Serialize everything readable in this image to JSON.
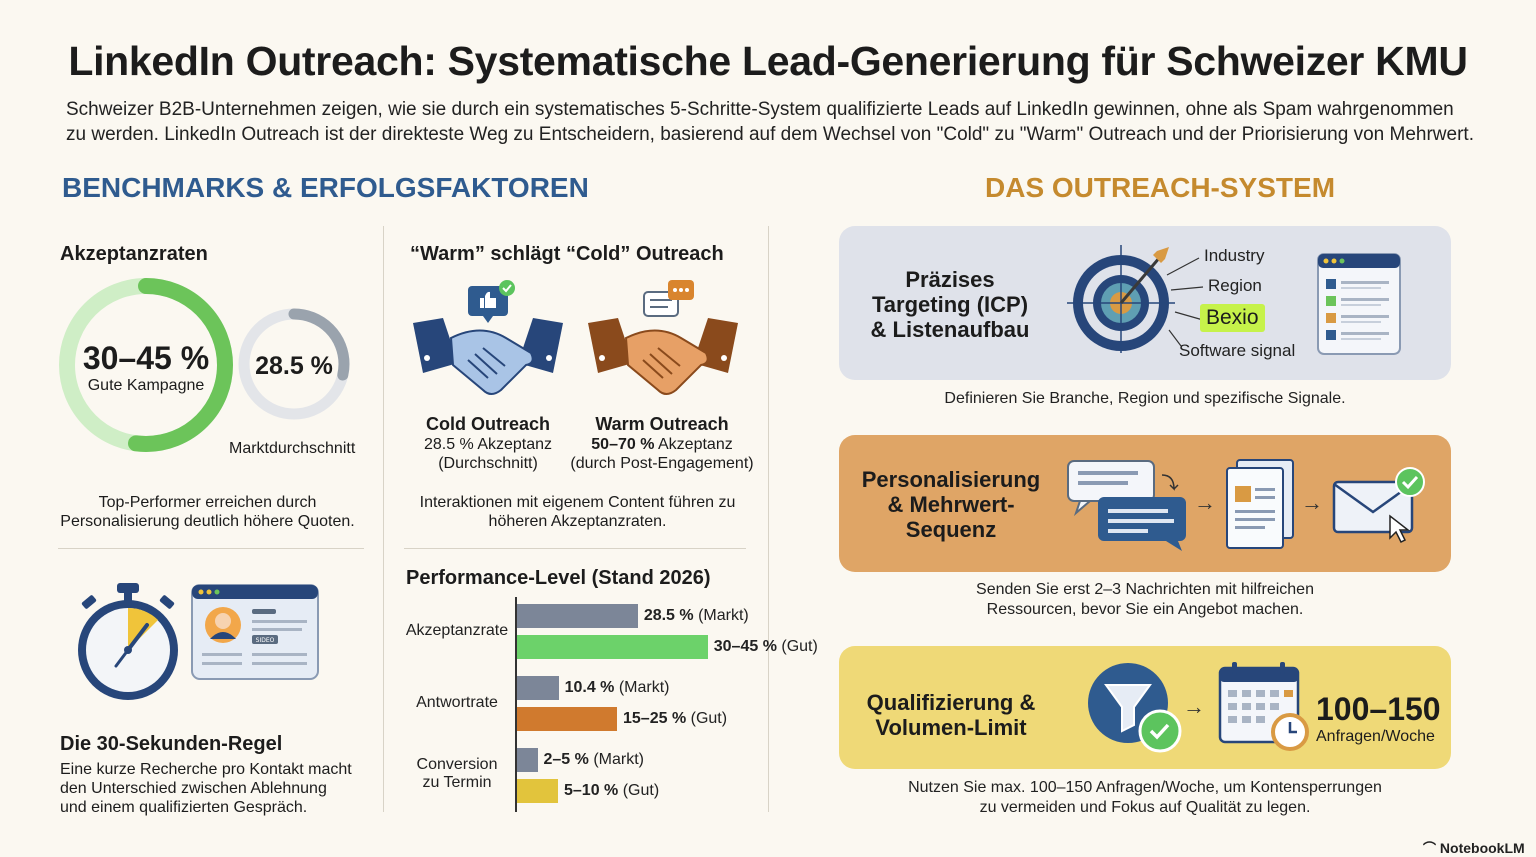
{
  "title": "LinkedIn Outreach: Systematische Lead-Generierung für Schweizer KMU",
  "intro": "Schweizer B2B-Unternehmen zeigen, wie sie durch ein systematisches 5-Schritte-System qualifizierte Leads auf LinkedIn gewinnen, ohne als Spam wahrgenommen zu werden. LinkedIn Outreach ist der direkteste Weg zu Entscheidern, basierend auf dem Wechsel von \"Cold\" zu \"Warm\" Outreach und der Priorisierung von Mehrwert.",
  "left_section_title": "BENCHMARKS & ERFOLGSFAKTOREN",
  "right_section_title": "DAS OUTREACH-SYSTEM",
  "acceptance": {
    "heading": "Akzeptanzraten",
    "good_value": "30–45 %",
    "good_label": "Gute Kampagne",
    "market_value": "28.5 %",
    "market_label": "Marktdurchschnitt",
    "note_line1": "Top-Performer erreichen durch",
    "note_line2": "Personalisierung deutlich höhere Quoten.",
    "colors": {
      "good": "#6cc45a",
      "market": "#9aa3ad"
    }
  },
  "warm_cold": {
    "heading": "“Warm” schlägt “Cold” Outreach",
    "cold_title": "Cold Outreach",
    "cold_rate": "28.5 % Akzeptanz",
    "cold_note": "(Durchschnitt)",
    "warm_title": "Warm Outreach",
    "warm_rate_bold": "50–70 %",
    "warm_rate_rest": " Akzeptanz",
    "warm_note": "(durch Post-Engagement)",
    "note_line1": "Interaktionen mit eigenem Content führen zu",
    "note_line2": "höheren Akzeptanzraten."
  },
  "rule": {
    "heading": "Die 30-Sekunden-Regel",
    "line1": "Eine kurze Recherche pro Kontakt macht",
    "line2": "den Unterschied zwischen Ablehnung",
    "line3": "und einem qualifizierten Gespräch.",
    "profile_badge": "SIDEO",
    "icons": [
      "stopwatch-icon",
      "profile-card-icon"
    ]
  },
  "chart_data": {
    "type": "bar",
    "title": "Performance-Level (Stand 2026)",
    "groups": [
      {
        "label_lines": [
          "Akzeptanzrate"
        ],
        "bars": [
          {
            "value": 28.5,
            "label_bold": "28.5 %",
            "label_rest": " (Markt)",
            "color": "#7c8698"
          },
          {
            "value": 45,
            "label_bold": "30–45 %",
            "label_rest": " (Gut)",
            "color": "#6cd26a"
          }
        ]
      },
      {
        "label_lines": [
          "Antwortrate"
        ],
        "bars": [
          {
            "value": 10.4,
            "label_bold": "10.4 %",
            "label_rest": " (Markt)",
            "color": "#7c8698"
          },
          {
            "value": 25,
            "label_bold": "15–25 %",
            "label_rest": " (Gut)",
            "color": "#d07a2e"
          }
        ]
      },
      {
        "label_lines": [
          "Conversion",
          "zu Termin"
        ],
        "bars": [
          {
            "value": 5,
            "label_bold": "2–5 %",
            "label_rest": " (Markt)",
            "color": "#7c8698"
          },
          {
            "value": 10,
            "label_bold": "5–10 %",
            "label_rest": " (Gut)",
            "color": "#e2c43c"
          }
        ]
      }
    ]
  },
  "steps": [
    {
      "title_lines": [
        "Präzises",
        "Targeting (ICP)",
        "& Listenaufbau"
      ],
      "tags": [
        "Industry",
        "Region",
        "Bexio",
        "Software signal"
      ],
      "caption_lines": [
        "Definieren Sie Branche, Region und spezifische Signale."
      ],
      "color": "#dfe2ea"
    },
    {
      "title_lines": [
        "Personalisierung",
        "& Mehrwert-",
        "Sequenz"
      ],
      "caption_lines": [
        "Senden Sie erst 2–3 Nachrichten mit hilfreichen",
        "Ressourcen, bevor Sie ein Angebot machen."
      ],
      "color": "#dfa566"
    },
    {
      "title_lines": [
        "Qualifizierung &",
        "Volumen-Limit"
      ],
      "big_value": "100–150",
      "big_unit": "Anfragen/Woche",
      "caption_lines": [
        "Nutzen Sie max. 100–150 Anfragen/Woche, um Kontensperrungen",
        "zu vermeiden und Fokus auf Qualität zu legen."
      ],
      "color": "#efd977"
    }
  ],
  "brand": "NotebookLM"
}
